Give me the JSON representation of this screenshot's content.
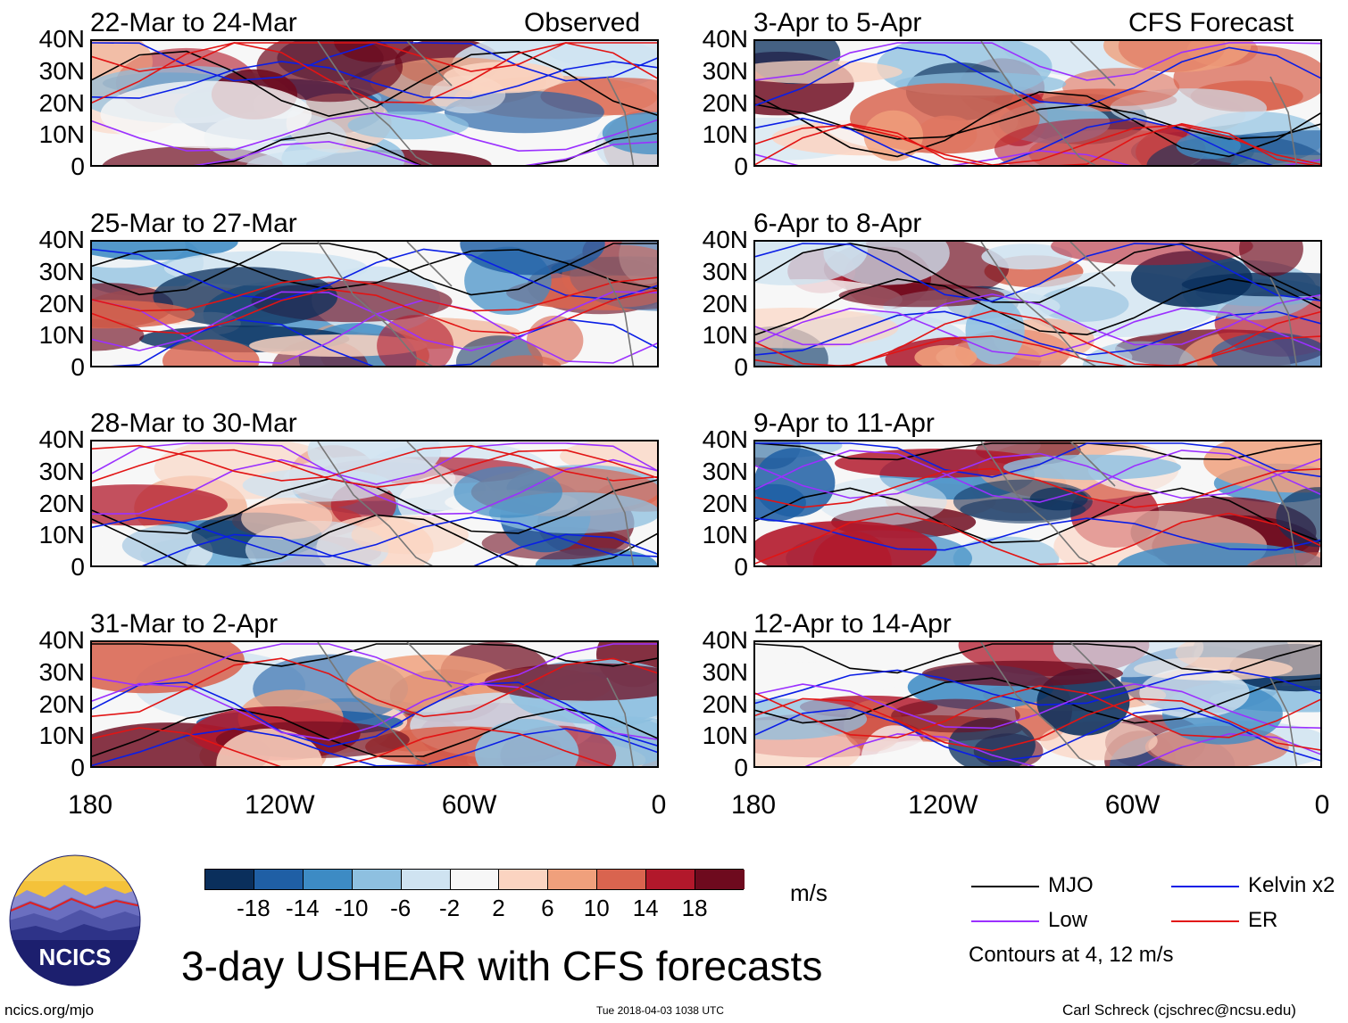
{
  "header": {
    "observed_label": "Observed",
    "forecast_label": "CFS Forecast"
  },
  "chart_data": {
    "type": "heatmap",
    "title": "3-day USHEAR with CFS forecasts",
    "variable": "USHEAR",
    "units": "m/s",
    "x_axis": {
      "ticks": [
        "180",
        "120W",
        "60W",
        "0"
      ],
      "range": [
        -180,
        0
      ]
    },
    "y_axis": {
      "ticks": [
        "40N",
        "30N",
        "20N",
        "10N",
        "0"
      ],
      "range": [
        0,
        40
      ]
    },
    "panels": [
      {
        "period": "22-Mar to 24-Mar",
        "source": "Observed"
      },
      {
        "period": "25-Mar to 27-Mar",
        "source": "Observed"
      },
      {
        "period": "28-Mar to 30-Mar",
        "source": "Observed"
      },
      {
        "period": "31-Mar to 2-Apr",
        "source": "Observed"
      },
      {
        "period": "3-Apr to 5-Apr",
        "source": "CFS Forecast"
      },
      {
        "period": "6-Apr to 8-Apr",
        "source": "CFS Forecast"
      },
      {
        "period": "9-Apr to 11-Apr",
        "source": "CFS Forecast"
      },
      {
        "period": "12-Apr to 14-Apr",
        "source": "CFS Forecast"
      }
    ],
    "colorbar": {
      "labels": [
        "-18",
        "-14",
        "-10",
        "-6",
        "-2",
        "2",
        "6",
        "10",
        "14",
        "18"
      ],
      "colors": [
        "#0a2f5c",
        "#1f5fa5",
        "#3d8bc4",
        "#8ec0e0",
        "#cfe3f1",
        "#f7f7f7",
        "#fbd4c1",
        "#f0a07c",
        "#d9644f",
        "#b2182b",
        "#6e0a1e"
      ]
    },
    "legend": [
      {
        "name": "MJO",
        "color": "#000000"
      },
      {
        "name": "Kelvin x2",
        "color": "#0a1ee6"
      },
      {
        "name": "Low",
        "color": "#9b30ff"
      },
      {
        "name": "ER",
        "color": "#e21414"
      }
    ],
    "contour_note": "Contours at 4, 12 m/s"
  },
  "footer": {
    "logo_text": "NCICS",
    "website": "ncics.org/mjo",
    "timestamp": "Tue 2018-04-03 1038 UTC",
    "credit": "Carl Schreck (cjschrec@ncsu.edu)"
  }
}
